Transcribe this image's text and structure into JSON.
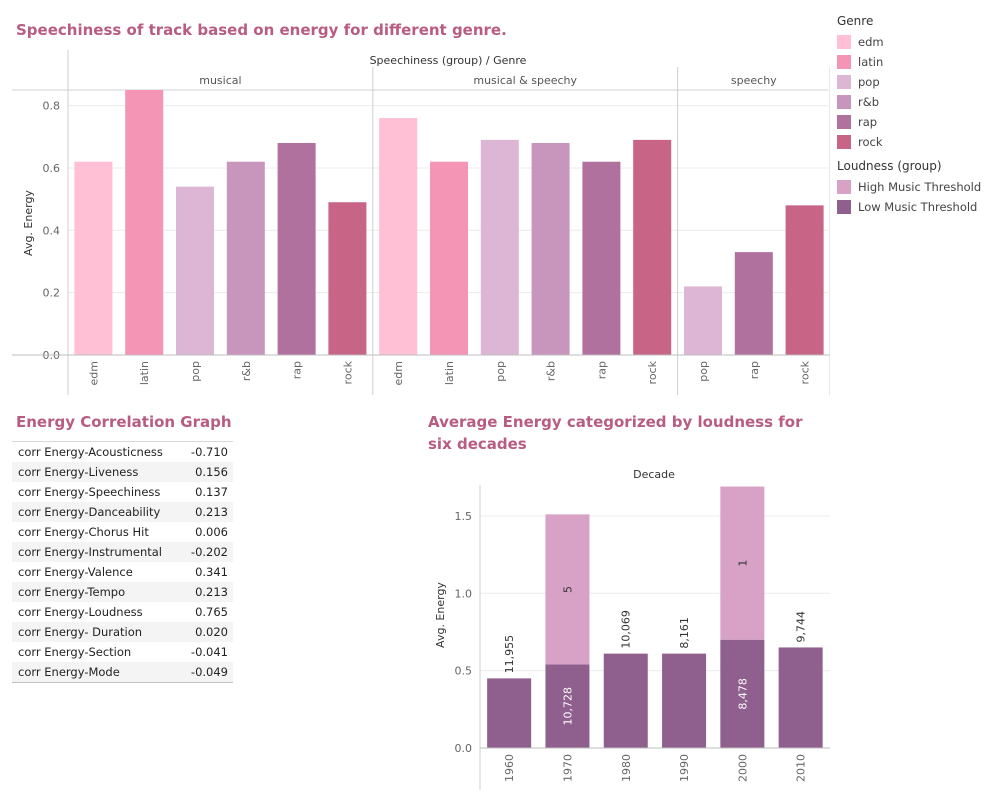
{
  "titles": {
    "chart1": "Speechiness of track based on energy for different genre.",
    "table": "Energy Correlation Graph",
    "chart2": "Average Energy categorized by loudness for six decades"
  },
  "legend": {
    "genre_title": "Genre",
    "genres": [
      {
        "label": "edm",
        "color": "#ffbfd4"
      },
      {
        "label": "latin",
        "color": "#f595b5"
      },
      {
        "label": "pop",
        "color": "#ddb6d6"
      },
      {
        "label": "r&b",
        "color": "#c895bd"
      },
      {
        "label": "rap",
        "color": "#b0719e"
      },
      {
        "label": "rock",
        "color": "#c86486"
      }
    ],
    "loudness_title": "Loudness (group)",
    "loudness": [
      {
        "label": "High Music Threshold",
        "color": "#d7a2c6"
      },
      {
        "label": "Low Music Threshold",
        "color": "#8f5f8d"
      }
    ]
  },
  "chart_data": [
    {
      "type": "bar",
      "title": "Speechiness of track based on energy for different genre.",
      "header": "Speechiness (group)  /  Genre",
      "ylabel": "Avg. Energy",
      "ylim": [
        0,
        0.85
      ],
      "yticks": [
        "0.0",
        "0.2",
        "0.4",
        "0.6",
        "0.8"
      ],
      "panels": [
        {
          "name": "musical",
          "categories": [
            "edm",
            "latin",
            "pop",
            "r&b",
            "rap",
            "rock"
          ],
          "values": [
            0.62,
            0.85,
            0.54,
            0.62,
            0.68,
            0.49
          ]
        },
        {
          "name": "musical & speechy",
          "categories": [
            "edm",
            "latin",
            "pop",
            "r&b",
            "rap",
            "rock"
          ],
          "values": [
            0.76,
            0.62,
            0.69,
            0.68,
            0.62,
            0.69
          ]
        },
        {
          "name": "speechy",
          "categories": [
            "pop",
            "rap",
            "rock"
          ],
          "values": [
            0.22,
            0.33,
            0.48
          ]
        }
      ]
    },
    {
      "type": "table",
      "rows": [
        {
          "label": "corr Energy-Acousticness",
          "value": "-0.710"
        },
        {
          "label": "corr Energy-Liveness",
          "value": "0.156"
        },
        {
          "label": "corr Energy-Speechiness",
          "value": "0.137"
        },
        {
          "label": "corr Energy-Danceability",
          "value": "0.213"
        },
        {
          "label": "corr Energy-Chorus Hit",
          "value": "0.006"
        },
        {
          "label": "corr Energy-Instrumental",
          "value": "-0.202"
        },
        {
          "label": "corr Energy-Valence",
          "value": "0.341"
        },
        {
          "label": "corr Energy-Tempo",
          "value": "0.213"
        },
        {
          "label": "corr Energy-Loudness",
          "value": "0.765"
        },
        {
          "label": "corr Energy- Duration",
          "value": "0.020"
        },
        {
          "label": "corr Energy-Section",
          "value": "-0.041"
        },
        {
          "label": "corr Energy-Mode",
          "value": "-0.049"
        }
      ]
    },
    {
      "type": "bar",
      "stacked": true,
      "title": "Average Energy categorized by loudness for six decades",
      "header": "Decade",
      "ylabel": "Avg. Energy",
      "ylim": [
        0,
        1.7
      ],
      "yticks": [
        "0.0",
        "0.5",
        "1.0",
        "1.5"
      ],
      "categories": [
        "1960",
        "1970",
        "1980",
        "1990",
        "2000",
        "2010"
      ],
      "series": [
        {
          "name": "Low Music Threshold",
          "values": [
            0.45,
            0.54,
            0.61,
            0.61,
            0.7,
            0.65
          ],
          "labels": [
            "11,955",
            "10,728",
            "10,069",
            "8,161",
            "8,478",
            "9,744"
          ]
        },
        {
          "name": "High Music Threshold",
          "values": [
            0,
            0.97,
            0,
            0,
            0.99,
            0
          ],
          "labels": [
            "",
            "5",
            "",
            "",
            "1",
            ""
          ]
        }
      ]
    }
  ]
}
